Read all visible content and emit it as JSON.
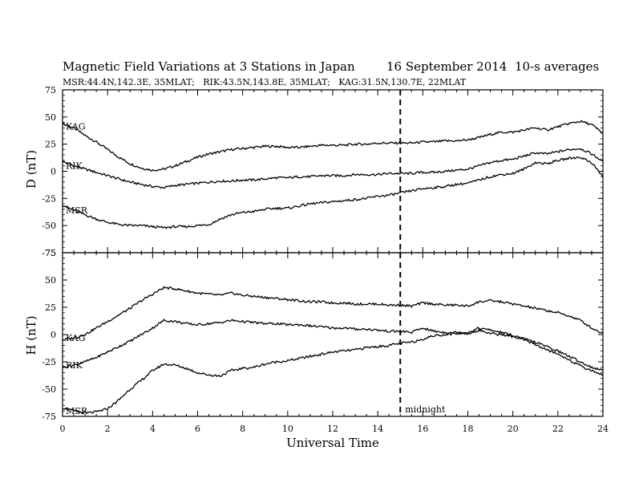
{
  "header": {
    "title": "Magnetic Field Variations at 3 Stations in Japan",
    "date": "16 September 2014",
    "averaging": "10-s averages",
    "stations": "MSR:44.4N,142.3E, 35MLAT;   RIK:43.5N,143.8E, 35MLAT;   KAG:31.5N,130.7E, 22MLAT"
  },
  "chart_data": [
    {
      "type": "line",
      "panel": "top",
      "ylabel": "D (nT)",
      "xlabel": "",
      "ylim": [
        -75,
        75
      ],
      "yticks": [
        75,
        50,
        25,
        0,
        -25,
        -50,
        -75
      ],
      "xlim": [
        0,
        24
      ],
      "xticks": [
        0,
        2,
        4,
        6,
        8,
        10,
        12,
        14,
        16,
        18,
        20,
        22,
        24
      ],
      "grid": false,
      "marker_line": {
        "x": 15,
        "style": "dashed"
      },
      "series": [
        {
          "name": "KAG",
          "x": [
            0,
            0.5,
            1,
            1.5,
            2,
            2.5,
            3,
            3.5,
            4,
            4.5,
            5,
            5.5,
            6,
            6.5,
            7,
            7.5,
            8,
            8.5,
            9,
            9.5,
            10,
            10.5,
            11,
            11.5,
            12,
            12.5,
            13,
            13.5,
            14,
            14.5,
            15,
            15.5,
            16,
            16.5,
            17,
            17.5,
            18,
            18.5,
            19,
            19.5,
            20,
            20.5,
            21,
            21.5,
            22,
            22.5,
            23,
            23.5,
            24
          ],
          "values": [
            44,
            40,
            33,
            27,
            20,
            13,
            7,
            3,
            1,
            2,
            5,
            9,
            13,
            16,
            18,
            20,
            21,
            22,
            23,
            23,
            22,
            22,
            23,
            24,
            24,
            24,
            25,
            25,
            26,
            26,
            26,
            26,
            27,
            27,
            28,
            28,
            29,
            31,
            34,
            36,
            36,
            38,
            40,
            38,
            41,
            44,
            46,
            43,
            35
          ]
        },
        {
          "name": "RIK",
          "x": [
            0,
            0.5,
            1,
            1.5,
            2,
            2.5,
            3,
            3.5,
            4,
            4.5,
            5,
            5.5,
            6,
            6.5,
            7,
            7.5,
            8,
            8.5,
            9,
            9.5,
            10,
            10.5,
            11,
            11.5,
            12,
            12.5,
            13,
            13.5,
            14,
            14.5,
            15,
            15.5,
            16,
            16.5,
            17,
            17.5,
            18,
            18.5,
            19,
            19.5,
            20,
            20.5,
            21,
            21.5,
            22,
            22.5,
            23,
            23.5,
            24
          ],
          "values": [
            9,
            5,
            2,
            -1,
            -4,
            -7,
            -10,
            -12,
            -14,
            -15,
            -13,
            -12,
            -11,
            -10,
            -9,
            -9,
            -8,
            -8,
            -7,
            -6,
            -6,
            -5,
            -5,
            -4,
            -4,
            -4,
            -3,
            -3,
            -3,
            -2,
            -2,
            -2,
            -1,
            -1,
            0,
            1,
            2,
            5,
            8,
            10,
            11,
            14,
            17,
            16,
            18,
            20,
            21,
            16,
            9
          ]
        },
        {
          "name": "MSR",
          "x": [
            0,
            0.5,
            1,
            1.5,
            2,
            2.5,
            3,
            3.5,
            4,
            4.5,
            5,
            5.5,
            6,
            6.5,
            7,
            7.5,
            8,
            8.5,
            9,
            9.5,
            10,
            10.5,
            11,
            11.5,
            12,
            12.5,
            13,
            13.5,
            14,
            14.5,
            15,
            15.5,
            16,
            16.5,
            17,
            17.5,
            18,
            18.5,
            19,
            19.5,
            20,
            20.5,
            21,
            21.5,
            22,
            22.5,
            23,
            23.5,
            24
          ],
          "values": [
            -31,
            -36,
            -40,
            -44,
            -47,
            -49,
            -50,
            -50,
            -51,
            -52,
            -51,
            -51,
            -50,
            -49,
            -44,
            -40,
            -38,
            -37,
            -35,
            -34,
            -34,
            -32,
            -30,
            -29,
            -28,
            -27,
            -26,
            -25,
            -23,
            -22,
            -20,
            -18,
            -16,
            -15,
            -14,
            -12,
            -11,
            -8,
            -5,
            -3,
            -2,
            2,
            8,
            7,
            10,
            12,
            13,
            8,
            -5
          ]
        }
      ]
    },
    {
      "type": "line",
      "panel": "bottom",
      "ylabel": "H (nT)",
      "xlabel": "Universal Time",
      "ylim": [
        -75,
        75
      ],
      "yticks": [
        75,
        50,
        25,
        0,
        -25,
        -50,
        -75
      ],
      "xlim": [
        0,
        24
      ],
      "xticks": [
        0,
        2,
        4,
        6,
        8,
        10,
        12,
        14,
        16,
        18,
        20,
        22,
        24
      ],
      "grid": false,
      "marker_line": {
        "x": 15,
        "style": "dashed",
        "label": "midnight"
      },
      "series": [
        {
          "name": "KAG",
          "x": [
            0,
            0.5,
            1,
            1.5,
            2,
            2.5,
            3,
            3.5,
            4,
            4.5,
            5,
            5.5,
            6,
            6.5,
            7,
            7.5,
            8,
            8.5,
            9,
            9.5,
            10,
            10.5,
            11,
            11.5,
            12,
            12.5,
            13,
            13.5,
            14,
            14.5,
            15,
            15.5,
            16,
            16.5,
            17,
            17.5,
            18,
            18.5,
            19,
            19.5,
            20,
            20.5,
            21,
            21.5,
            22,
            22.5,
            23,
            23.5,
            24
          ],
          "values": [
            -5,
            -3,
            0,
            6,
            12,
            18,
            24,
            31,
            37,
            43,
            42,
            40,
            38,
            37,
            36,
            38,
            36,
            35,
            34,
            33,
            32,
            31,
            30,
            30,
            29,
            29,
            28,
            28,
            28,
            27,
            27,
            26,
            29,
            28,
            27,
            27,
            26,
            30,
            31,
            30,
            28,
            26,
            24,
            22,
            20,
            17,
            13,
            6,
            1
          ]
        },
        {
          "name": "RIK",
          "x": [
            0,
            0.5,
            1,
            1.5,
            2,
            2.5,
            3,
            3.5,
            4,
            4.5,
            5,
            5.5,
            6,
            6.5,
            7,
            7.5,
            8,
            8.5,
            9,
            9.5,
            10,
            10.5,
            11,
            11.5,
            12,
            12.5,
            13,
            13.5,
            14,
            14.5,
            15,
            15.5,
            16,
            16.5,
            17,
            17.5,
            18,
            18.5,
            19,
            19.5,
            20,
            20.5,
            21,
            21.5,
            22,
            22.5,
            23,
            23.5,
            24
          ],
          "values": [
            -30,
            -28,
            -25,
            -21,
            -16,
            -11,
            -6,
            0,
            6,
            13,
            12,
            10,
            9,
            10,
            11,
            13,
            12,
            11,
            10,
            10,
            9,
            9,
            8,
            7,
            6,
            6,
            5,
            5,
            4,
            3,
            3,
            2,
            6,
            3,
            2,
            2,
            2,
            6,
            4,
            2,
            -1,
            -4,
            -7,
            -11,
            -15,
            -20,
            -25,
            -30,
            -33
          ]
        },
        {
          "name": "MSR",
          "x": [
            0,
            0.5,
            1,
            1.5,
            2,
            2.5,
            3,
            3.5,
            4,
            4.5,
            5,
            5.5,
            6,
            6.5,
            7,
            7.5,
            8,
            8.5,
            9,
            9.5,
            10,
            10.5,
            11,
            11.5,
            12,
            12.5,
            13,
            13.5,
            14,
            14.5,
            15,
            15.5,
            16,
            16.5,
            17,
            17.5,
            18,
            18.5,
            19,
            19.5,
            20,
            20.5,
            21,
            21.5,
            22,
            22.5,
            23,
            23.5,
            24
          ],
          "values": [
            -67,
            -70,
            -72,
            -71,
            -68,
            -60,
            -50,
            -42,
            -33,
            -27,
            -28,
            -31,
            -35,
            -37,
            -38,
            -33,
            -31,
            -30,
            -27,
            -25,
            -24,
            -22,
            -20,
            -18,
            -16,
            -15,
            -14,
            -12,
            -11,
            -10,
            -8,
            -7,
            -4,
            -1,
            0,
            1,
            1,
            4,
            1,
            0,
            -2,
            -5,
            -9,
            -14,
            -18,
            -23,
            -29,
            -33,
            -37
          ]
        }
      ]
    }
  ]
}
